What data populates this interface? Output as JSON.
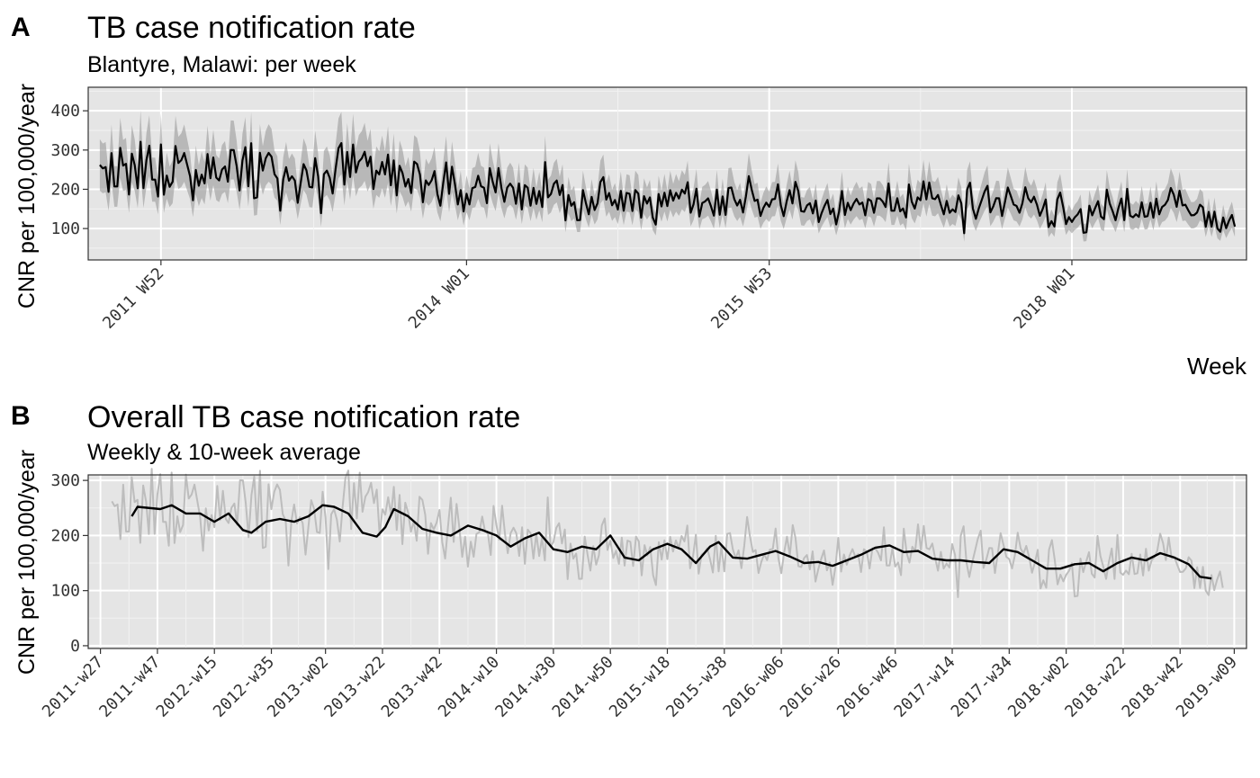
{
  "panels": {
    "a": {
      "letter": "A",
      "title": "TB case notification rate",
      "subtitle": "Blantyre, Malawi: per week",
      "ylabel": "CNR per 100,000/year",
      "xlabel": "Week"
    },
    "b": {
      "letter": "B",
      "title": "Overall TB case notification rate",
      "subtitle": "Weekly & 10-week average",
      "ylabel": "CNR per 100,000/year",
      "xlabel": ""
    }
  },
  "chart_data": [
    {
      "type": "line",
      "panel": "A",
      "title": "TB case notification rate",
      "subtitle": "Blantyre, Malawi: per week",
      "xlabel": "Week",
      "ylabel": "CNR per 100,000/year",
      "x_range": [
        "2011-w27",
        "2019-w09"
      ],
      "ylim": [
        20,
        460
      ],
      "yticks": [
        100,
        200,
        300,
        400
      ],
      "xticks": [
        "2011 W52",
        "2014 W01",
        "2015 W53",
        "2018 W01"
      ],
      "grid": true,
      "legend": "none",
      "series": [
        {
          "style": "line with shaded confidence band",
          "start_week": "2011-w31",
          "end_week": "2019-w05",
          "knots": [
            [
              "2011-w31",
              225
            ],
            [
              "2011-w47",
              250
            ],
            [
              "2012-w10",
              238
            ],
            [
              "2012-w35",
              255
            ],
            [
              "2013-w02",
              205
            ],
            [
              "2013-w16",
              252
            ],
            [
              "2013-w40",
              205
            ],
            [
              "2014-w10",
              195
            ],
            [
              "2014-w35",
              185
            ],
            [
              "2014-w50",
              160
            ],
            [
              "2015-w20",
              185
            ],
            [
              "2015-w38",
              170
            ],
            [
              "2016-w10",
              165
            ],
            [
              "2016-w35",
              160
            ],
            [
              "2016-w50",
              180
            ],
            [
              "2017-w20",
              155
            ],
            [
              "2017-w40",
              165
            ],
            [
              "2018-w02",
              140
            ],
            [
              "2018-w30",
              160
            ],
            [
              "2018-w40",
              160
            ],
            [
              "2019-w05",
              105
            ]
          ],
          "band_half_width_fraction": 0.25
        }
      ]
    },
    {
      "type": "line",
      "panel": "B",
      "title": "Overall TB case notification rate",
      "subtitle": "Weekly & 10-week average",
      "xlabel": "",
      "ylabel": "CNR per 100,000/year",
      "x_range": [
        "2011-w27",
        "2019-w09"
      ],
      "ylim": [
        -5,
        310
      ],
      "yticks": [
        0,
        100,
        200,
        300
      ],
      "xticks": [
        "2011-w27",
        "2011-w47",
        "2012-w15",
        "2012-w35",
        "2013-w02",
        "2013-w22",
        "2013-w42",
        "2014-w10",
        "2014-w30",
        "2014-w50",
        "2015-w18",
        "2015-w38",
        "2016-w06",
        "2016-w26",
        "2016-w46",
        "2017-w14",
        "2017-w34",
        "2018-w02",
        "2018-w22",
        "2018-w42",
        "2019-w09"
      ],
      "grid": true,
      "legend": "none",
      "series": [
        {
          "style": "grey weekly line",
          "start_week": "2011-w31",
          "end_week": "2019-w05",
          "knots": [
            [
              "2011-w31",
              225
            ],
            [
              "2011-w47",
              250
            ],
            [
              "2012-w10",
              238
            ],
            [
              "2012-w35",
              255
            ],
            [
              "2013-w02",
              205
            ],
            [
              "2013-w16",
              252
            ],
            [
              "2013-w40",
              205
            ],
            [
              "2014-w10",
              195
            ],
            [
              "2014-w35",
              185
            ],
            [
              "2014-w50",
              160
            ],
            [
              "2015-w20",
              185
            ],
            [
              "2015-w38",
              170
            ],
            [
              "2016-w10",
              165
            ],
            [
              "2016-w35",
              160
            ],
            [
              "2016-w50",
              180
            ],
            [
              "2017-w20",
              155
            ],
            [
              "2017-w40",
              165
            ],
            [
              "2018-w02",
              140
            ],
            [
              "2018-w30",
              160
            ],
            [
              "2018-w40",
              160
            ],
            [
              "2019-w05",
              105
            ]
          ]
        },
        {
          "style": "black 10-week average line",
          "start_week": "2011-w38",
          "end_week": "2019-w01",
          "points": [
            [
              "2011-w38",
              235
            ],
            [
              "2011-w40",
              252
            ],
            [
              "2011-w48",
              248
            ],
            [
              "2011-w52",
              255
            ],
            [
              "2012-w05",
              240
            ],
            [
              "2012-w10",
              240
            ],
            [
              "2012-w15",
              225
            ],
            [
              "2012-w20",
              240
            ],
            [
              "2012-w25",
              210
            ],
            [
              "2012-w28",
              205
            ],
            [
              "2012-w33",
              225
            ],
            [
              "2012-w38",
              230
            ],
            [
              "2012-w43",
              225
            ],
            [
              "2012-w48",
              235
            ],
            [
              "2013-w01",
              255
            ],
            [
              "2013-w05",
              252
            ],
            [
              "2013-w10",
              240
            ],
            [
              "2013-w15",
              205
            ],
            [
              "2013-w20",
              198
            ],
            [
              "2013-w23",
              215
            ],
            [
              "2013-w26",
              248
            ],
            [
              "2013-w31",
              235
            ],
            [
              "2013-w36",
              212
            ],
            [
              "2013-w41",
              205
            ],
            [
              "2013-w46",
              200
            ],
            [
              "2013-w52",
              218
            ],
            [
              "2014-w05",
              210
            ],
            [
              "2014-w10",
              200
            ],
            [
              "2014-w15",
              180
            ],
            [
              "2014-w20",
              195
            ],
            [
              "2014-w25",
              205
            ],
            [
              "2014-w30",
              175
            ],
            [
              "2014-w35",
              170
            ],
            [
              "2014-w40",
              180
            ],
            [
              "2014-w45",
              175
            ],
            [
              "2014-w50",
              200
            ],
            [
              "2015-w03",
              160
            ],
            [
              "2015-w08",
              155
            ],
            [
              "2015-w13",
              175
            ],
            [
              "2015-w18",
              185
            ],
            [
              "2015-w23",
              175
            ],
            [
              "2015-w28",
              150
            ],
            [
              "2015-w33",
              180
            ],
            [
              "2015-w36",
              188
            ],
            [
              "2015-w41",
              160
            ],
            [
              "2015-w46",
              158
            ],
            [
              "2015-w51",
              165
            ],
            [
              "2016-w04",
              172
            ],
            [
              "2016-w09",
              162
            ],
            [
              "2016-w14",
              150
            ],
            [
              "2016-w19",
              152
            ],
            [
              "2016-w24",
              145
            ],
            [
              "2016-w29",
              155
            ],
            [
              "2016-w34",
              165
            ],
            [
              "2016-w39",
              178
            ],
            [
              "2016-w44",
              182
            ],
            [
              "2016-w49",
              170
            ],
            [
              "2017-w02",
              172
            ],
            [
              "2017-w07",
              158
            ],
            [
              "2017-w12",
              155
            ],
            [
              "2017-w17",
              155
            ],
            [
              "2017-w22",
              152
            ],
            [
              "2017-w27",
              150
            ],
            [
              "2017-w32",
              175
            ],
            [
              "2017-w37",
              170
            ],
            [
              "2017-w42",
              155
            ],
            [
              "2017-w47",
              140
            ],
            [
              "2017-w52",
              140
            ],
            [
              "2018-w05",
              148
            ],
            [
              "2018-w10",
              150
            ],
            [
              "2018-w15",
              135
            ],
            [
              "2018-w20",
              150
            ],
            [
              "2018-w25",
              160
            ],
            [
              "2018-w30",
              155
            ],
            [
              "2018-w35",
              168
            ],
            [
              "2018-w40",
              160
            ],
            [
              "2018-w45",
              148
            ],
            [
              "2018-w49",
              125
            ],
            [
              "2019-w01",
              122
            ]
          ]
        }
      ]
    }
  ]
}
